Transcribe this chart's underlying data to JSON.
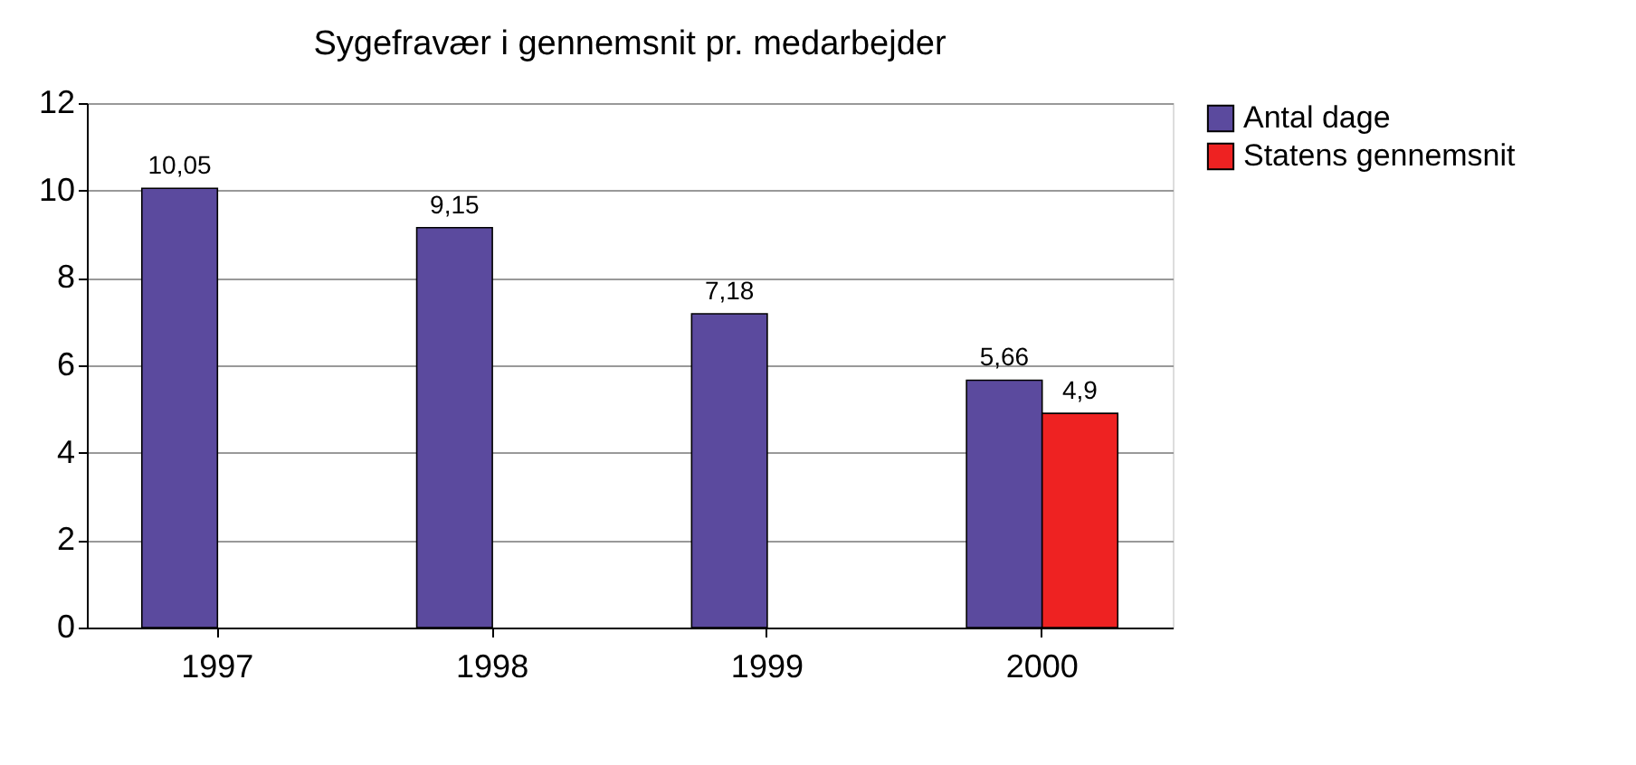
{
  "chart_data": {
    "type": "bar",
    "title": "Sygefravær i gennemsnit pr. medarbejder",
    "categories": [
      "1997",
      "1998",
      "1999",
      "2000"
    ],
    "series": [
      {
        "name": "Antal dage",
        "color": "#5b4a9e",
        "values": [
          10.05,
          9.15,
          7.18,
          5.66
        ],
        "value_labels": [
          "10,05",
          "9,15",
          "7,18",
          "5,66"
        ]
      },
      {
        "name": "Statens gennemsnit",
        "color": "#ee2222",
        "values": [
          null,
          null,
          null,
          4.9
        ],
        "value_labels": [
          null,
          null,
          null,
          "4,9"
        ]
      }
    ],
    "ylim": [
      0,
      12
    ],
    "yticks": [
      0,
      2,
      4,
      6,
      8,
      10,
      12
    ],
    "grid": "y",
    "legend": "right"
  }
}
